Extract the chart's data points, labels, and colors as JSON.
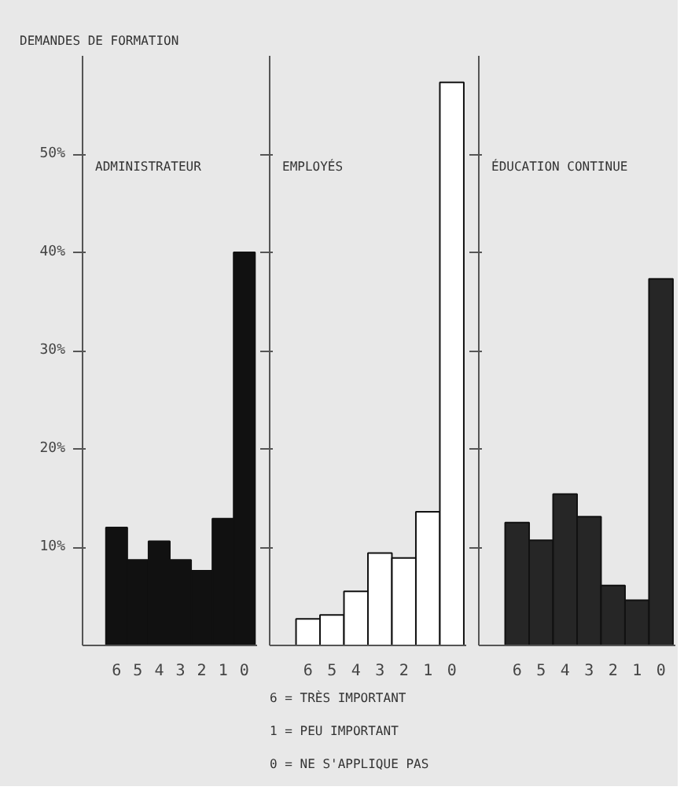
{
  "chart_data": [
    {
      "type": "bar",
      "title": "DEMANDES DE FORMATION",
      "subtitle": "ADMINISTRATEUR",
      "categories": [
        "6",
        "5",
        "4",
        "3",
        "2",
        "1",
        "0"
      ],
      "values": [
        12,
        8.7,
        10.6,
        8.7,
        7.6,
        12.9,
        40
      ],
      "color": "#111111",
      "ylim": [
        0,
        60
      ],
      "yticks": [
        {
          "value": 10,
          "label": "10%"
        },
        {
          "value": 20,
          "label": "20%"
        },
        {
          "value": 30,
          "label": "30%"
        },
        {
          "value": 40,
          "label": "40%"
        },
        {
          "value": 50,
          "label": "50%"
        }
      ]
    },
    {
      "type": "bar",
      "subtitle": "EMPLOYÉS",
      "categories": [
        "6",
        "5",
        "4",
        "3",
        "2",
        "1",
        "0"
      ],
      "values": [
        2.7,
        3.1,
        5.5,
        9.4,
        8.9,
        13.6,
        57.3
      ],
      "color": "#ffffff",
      "ylim": [
        0,
        60
      ],
      "yticks": [
        {
          "value": 10,
          "label": null
        },
        {
          "value": 20,
          "label": null
        },
        {
          "value": 30,
          "label": null
        },
        {
          "value": 40,
          "label": null
        },
        {
          "value": 50,
          "label": null
        }
      ],
      "tick_labels": "x",
      "annotations": [
        "6 = TRÈS IMPORTANT",
        "1 = PEU IMPORTANT",
        "0 = NE S'APPLIQUE PAS"
      ]
    },
    {
      "type": "bar",
      "subtitle": "ÉDUCATION CONTINUE",
      "categories": [
        "6",
        "5",
        "4",
        "3",
        "2",
        "1",
        "0"
      ],
      "values": [
        12.5,
        10.7,
        15.4,
        13.1,
        6.1,
        4.6,
        37.3
      ],
      "color": "#262626",
      "ylim": [
        0,
        60
      ],
      "yticks": [
        {
          "value": 10,
          "label": null
        },
        {
          "value": 20,
          "label": null
        },
        {
          "value": 30,
          "label": null
        },
        {
          "value": 40,
          "label": null
        },
        {
          "value": 50,
          "label": null
        }
      ],
      "tick_labels": "x"
    }
  ]
}
